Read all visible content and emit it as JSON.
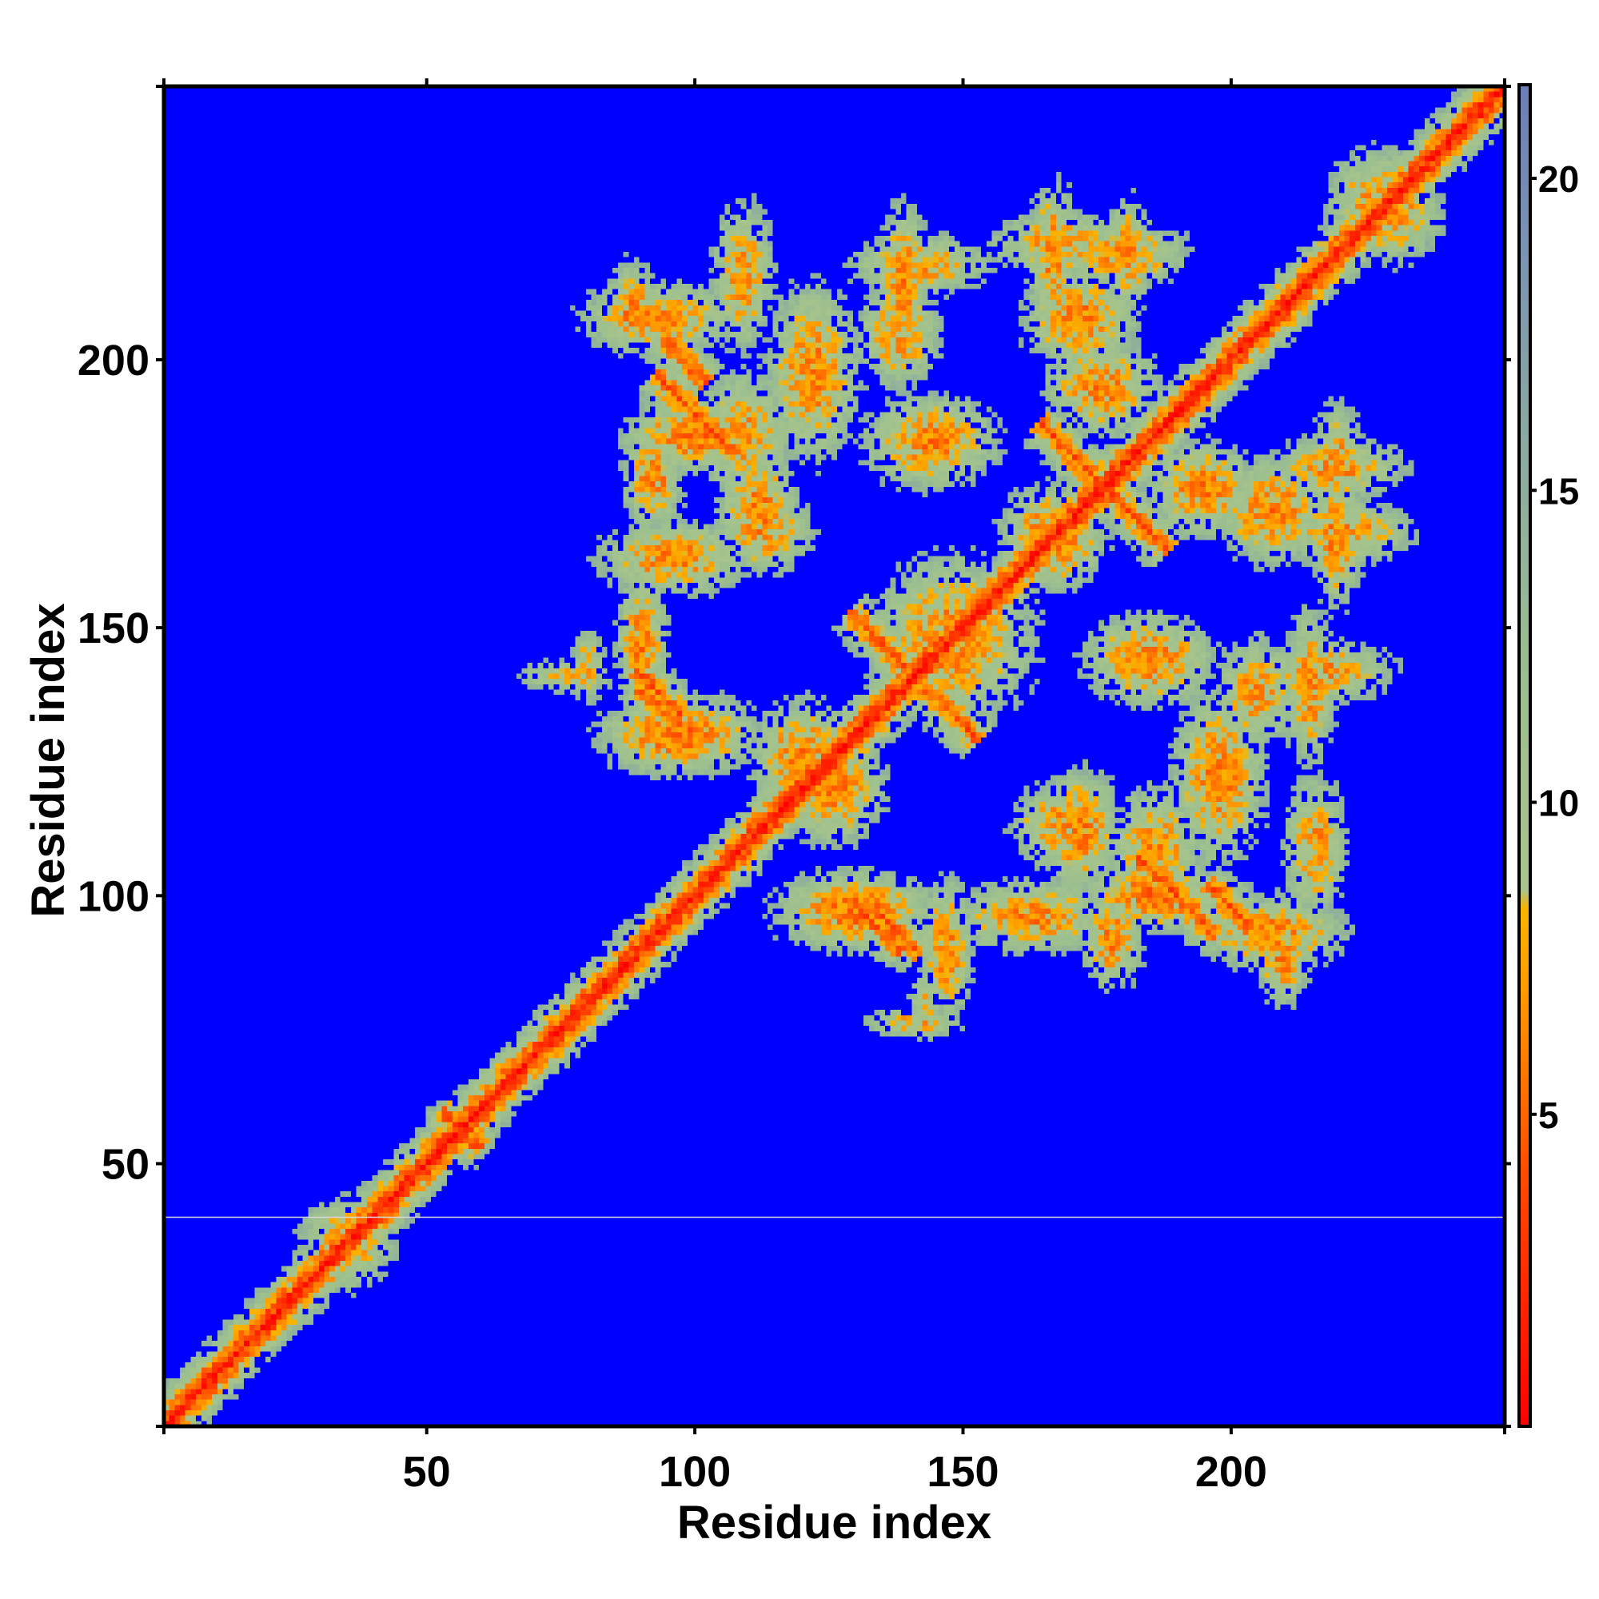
{
  "chart_data": {
    "type": "heatmap",
    "title": "",
    "xlabel": "Residue index",
    "ylabel": "Residue index",
    "n_residues": 251,
    "xlim": [
      1,
      251
    ],
    "ylim": [
      1,
      251
    ],
    "x_ticks": [
      50,
      100,
      150,
      200
    ],
    "y_ticks": [
      50,
      100,
      150,
      200
    ],
    "colorbar": {
      "range": [
        0,
        21.5
      ],
      "ticks": [
        5,
        10,
        15,
        20
      ],
      "stops": [
        {
          "value": 0,
          "color": "#ff0000"
        },
        {
          "value": 4,
          "color": "#ff4a00"
        },
        {
          "value": 7,
          "color": "#ff9b00"
        },
        {
          "value": 8.3,
          "color": "#f8b400"
        },
        {
          "value": 8.6,
          "color": "#a8c48c"
        },
        {
          "value": 12,
          "color": "#9bbf8f"
        },
        {
          "value": 16,
          "color": "#8aa8a3"
        },
        {
          "value": 19,
          "color": "#7a92b3"
        },
        {
          "value": 21.5,
          "color": "#6b7eb8"
        }
      ],
      "cutoff": 15,
      "background_color": "#0000ff"
    },
    "features": [
      {
        "kind": "diagonal",
        "from": 1,
        "to": 251,
        "width": 6.5
      },
      {
        "kind": "blob",
        "cx": 100,
        "cy": 186,
        "sx": 14,
        "sy": 7,
        "amp": 9
      },
      {
        "kind": "blob",
        "cx": 109,
        "cy": 216,
        "sx": 6,
        "sy": 14,
        "amp": 7
      },
      {
        "kind": "blob",
        "cx": 88,
        "cy": 210,
        "sx": 5,
        "sy": 9,
        "amp": 8
      },
      {
        "kind": "blob",
        "cx": 113,
        "cy": 168,
        "sx": 9,
        "sy": 8,
        "amp": 7
      },
      {
        "kind": "blob",
        "cx": 92,
        "cy": 178,
        "sx": 6,
        "sy": 10,
        "amp": 8
      },
      {
        "kind": "blob",
        "cx": 90,
        "cy": 147,
        "sx": 5,
        "sy": 14,
        "amp": 8
      },
      {
        "kind": "blob",
        "cx": 76,
        "cy": 141,
        "sx": 9,
        "sy": 3,
        "amp": 6
      },
      {
        "kind": "blob",
        "cx": 144,
        "cy": 185,
        "sx": 13,
        "sy": 9,
        "amp": 8
      },
      {
        "kind": "blob",
        "cx": 139,
        "cy": 215,
        "sx": 5,
        "sy": 15,
        "amp": 8
      },
      {
        "kind": "blob",
        "cx": 148,
        "cy": 148,
        "sx": 16,
        "sy": 16,
        "amp": 8
      },
      {
        "kind": "blob",
        "cx": 166,
        "cy": 168,
        "sx": 9,
        "sy": 9,
        "amp": 8
      },
      {
        "kind": "blob",
        "cx": 172,
        "cy": 208,
        "sx": 11,
        "sy": 10,
        "amp": 8
      },
      {
        "kind": "blob",
        "cx": 167,
        "cy": 220,
        "sx": 5,
        "sy": 14,
        "amp": 8
      },
      {
        "kind": "blob",
        "cx": 181,
        "cy": 220,
        "sx": 5,
        "sy": 11,
        "amp": 7
      },
      {
        "kind": "blob",
        "cx": 195,
        "cy": 176,
        "sx": 11,
        "sy": 9,
        "amp": 8
      },
      {
        "kind": "blob",
        "cx": 220,
        "cy": 180,
        "sx": 13,
        "sy": 6,
        "amp": 7
      },
      {
        "kind": "blob",
        "cx": 222,
        "cy": 168,
        "sx": 13,
        "sy": 6,
        "amp": 7
      },
      {
        "kind": "blob",
        "cx": 126,
        "cy": 120,
        "sx": 10,
        "sy": 11,
        "amp": 8
      },
      {
        "kind": "blob",
        "cx": 130,
        "cy": 97,
        "sx": 16,
        "sy": 8,
        "amp": 9
      },
      {
        "kind": "blob",
        "cx": 163,
        "cy": 96,
        "sx": 15,
        "sy": 7,
        "amp": 8
      },
      {
        "kind": "blob",
        "cx": 172,
        "cy": 112,
        "sx": 8,
        "sy": 12,
        "amp": 8
      },
      {
        "kind": "blob",
        "cx": 186,
        "cy": 109,
        "sx": 9,
        "sy": 12,
        "amp": 7
      },
      {
        "kind": "blob",
        "cx": 198,
        "cy": 122,
        "sx": 9,
        "sy": 17,
        "amp": 8
      },
      {
        "kind": "blob",
        "cx": 208,
        "cy": 93,
        "sx": 15,
        "sy": 7,
        "amp": 8
      },
      {
        "kind": "blob",
        "cx": 218,
        "cy": 142,
        "sx": 13,
        "sy": 6,
        "amp": 7
      },
      {
        "kind": "blob",
        "cx": 205,
        "cy": 138,
        "sx": 8,
        "sy": 10,
        "amp": 7
      },
      {
        "kind": "blob",
        "cx": 143,
        "cy": 80,
        "sx": 3,
        "sy": 7,
        "amp": 5
      },
      {
        "kind": "blob",
        "cx": 230,
        "cy": 228,
        "sx": 10,
        "sy": 10,
        "amp": 7
      },
      {
        "kind": "blob",
        "cx": 55,
        "cy": 56,
        "sx": 6,
        "sy": 6,
        "amp": 6
      },
      {
        "kind": "blob",
        "cx": 73,
        "cy": 73,
        "sx": 6,
        "sy": 6,
        "amp": 5
      },
      {
        "kind": "blob",
        "cx": 35,
        "cy": 35,
        "sx": 9,
        "sy": 9,
        "amp": 6
      },
      {
        "kind": "antidiag",
        "center": [
          100,
          190
        ],
        "length": 22,
        "strength": 5
      },
      {
        "kind": "antidiag",
        "center": [
          140,
          142
        ],
        "length": 32,
        "strength": 6
      },
      {
        "kind": "antidiag",
        "center": [
          178,
          175
        ],
        "length": 30,
        "strength": 6
      },
      {
        "kind": "antidiag",
        "center": [
          138,
          93
        ],
        "length": 12,
        "strength": 5
      },
      {
        "kind": "antidiag",
        "center": [
          200,
          98
        ],
        "length": 12,
        "strength": 5
      },
      {
        "kind": "antidiag",
        "center": [
          93,
          135
        ],
        "length": 10,
        "strength": 5
      },
      {
        "kind": "antidiag",
        "center": [
          56,
          56
        ],
        "length": 10,
        "strength": 4
      }
    ],
    "artifact_row_y": 40,
    "grid": false,
    "legend": "colorbar-right"
  }
}
